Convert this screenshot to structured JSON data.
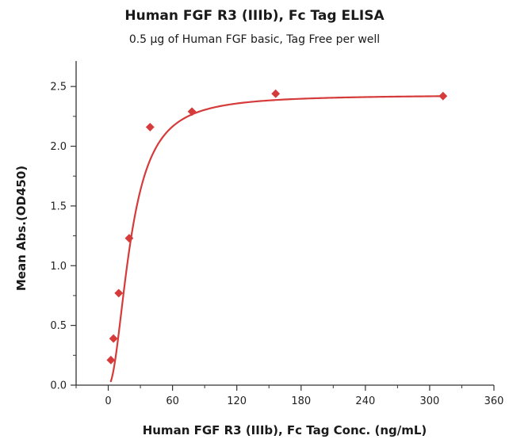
{
  "chart_data": {
    "type": "scatter",
    "title": "Human FGF R3 (IIIb), Fc Tag ELISA",
    "subtitle": "0.5 μg of Human FGF basic, Tag Free per well",
    "xlabel": "Human FGF R3 (IIIb), Fc Tag Conc. (ng/mL)",
    "ylabel": "Mean Abs.(OD450)",
    "xlim": [
      -30,
      360
    ],
    "ylim": [
      0,
      2.7
    ],
    "x_ticks": [
      0,
      60,
      120,
      180,
      240,
      300,
      360
    ],
    "y_ticks": [
      0.0,
      0.5,
      1.0,
      1.5,
      2.0,
      2.5
    ],
    "y_tick_labels": [
      "0.0",
      "0.5",
      "1.0",
      "1.5",
      "2.0",
      "2.5"
    ],
    "grid": false,
    "legend": "none",
    "series": [
      {
        "points": [
          {
            "x": 2.44,
            "y": 0.21
          },
          {
            "x": 4.88,
            "y": 0.39
          },
          {
            "x": 9.77,
            "y": 0.77
          },
          {
            "x": 19.53,
            "y": 1.23
          },
          {
            "x": 39.06,
            "y": 2.16
          },
          {
            "x": 78.13,
            "y": 2.29
          },
          {
            "x": 156.25,
            "y": 2.44
          },
          {
            "x": 312.5,
            "y": 2.42
          }
        ],
        "color": "#d63b3b",
        "marker": "diamond",
        "fit": {
          "type": "4PL",
          "bottom": 0.0,
          "top": 2.43,
          "ec50": 21.0,
          "hill": 2.0,
          "x_range": [
            2.44,
            312.5
          ]
        }
      }
    ]
  }
}
